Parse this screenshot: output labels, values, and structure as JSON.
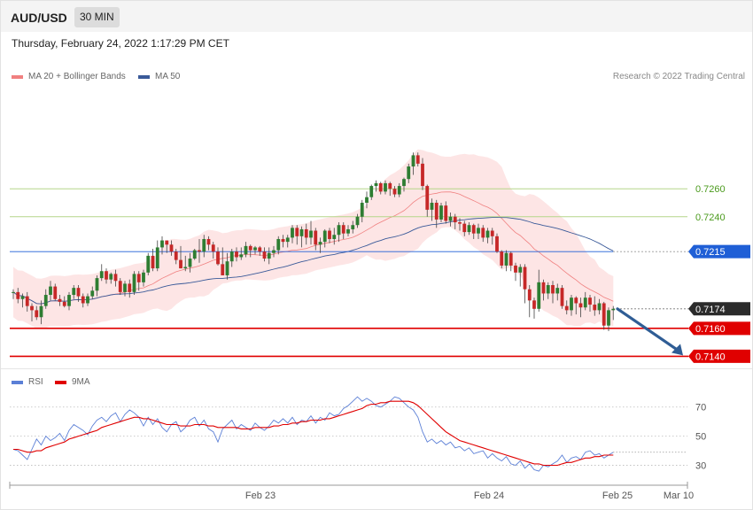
{
  "header": {
    "symbol": "AUD/USD",
    "timeframe": "30 MIN"
  },
  "datetime": "Thursday, February 24, 2022 1:17:29 PM CET",
  "legend": {
    "ma20": {
      "label": "MA 20 + Bollinger Bands",
      "color": "#f08080"
    },
    "ma50": {
      "label": "MA 50",
      "color": "#3a5a99"
    }
  },
  "credit": "Research © 2022 Trading Central",
  "rsi_legend": {
    "rsi": {
      "label": "RSI",
      "color": "#5b7fd6"
    },
    "ma9": {
      "label": "9MA",
      "color": "#e00000"
    }
  },
  "colors": {
    "up": "#2e7d32",
    "down": "#c62828",
    "band": "#fde1e1",
    "ma20": "#f08080",
    "ma50": "#3a5a99",
    "green_level": "#b5d68a",
    "blue_level": "#1f5fd6",
    "red_level": "#e00000",
    "arrow": "#2f5d95"
  },
  "chart_data": [
    {
      "type": "candlestick",
      "title": "AUD/USD",
      "ylim": [
        0.7132,
        0.7335
      ],
      "x_ticks": [
        "Feb 23",
        "Feb 24",
        "Feb 25",
        "Mar 10"
      ],
      "levels": [
        {
          "value": 0.726,
          "label": "0.7260",
          "style": "green"
        },
        {
          "value": 0.724,
          "label": "0.7240",
          "style": "green"
        },
        {
          "value": 0.7215,
          "label": "0.7215",
          "style": "blue"
        },
        {
          "value": 0.7174,
          "label": "0.7174",
          "style": "last"
        },
        {
          "value": 0.716,
          "label": "0.7160",
          "style": "red"
        },
        {
          "value": 0.714,
          "label": "0.7140",
          "style": "red"
        }
      ],
      "forecast_arrow": {
        "from": 0.7174,
        "to": 0.714
      },
      "candles": [
        [
          0.7186,
          0.7186,
          0.7181,
          0.7188
        ],
        [
          0.7186,
          0.7181,
          0.7178,
          0.7189
        ],
        [
          0.7181,
          0.7183,
          0.7175,
          0.7185
        ],
        [
          0.7183,
          0.7176,
          0.7172,
          0.7186
        ],
        [
          0.7176,
          0.7173,
          0.7165,
          0.7178
        ],
        [
          0.7173,
          0.7168,
          0.7166,
          0.7176
        ],
        [
          0.7168,
          0.7176,
          0.7163,
          0.718
        ],
        [
          0.7176,
          0.7184,
          0.7174,
          0.7188
        ],
        [
          0.7184,
          0.719,
          0.718,
          0.7194
        ],
        [
          0.719,
          0.7181,
          0.718,
          0.7192
        ],
        [
          0.7181,
          0.7179,
          0.7176,
          0.7184
        ],
        [
          0.7179,
          0.7176,
          0.7175,
          0.7183
        ],
        [
          0.7176,
          0.7184,
          0.7173,
          0.7186
        ],
        [
          0.7184,
          0.7189,
          0.7181,
          0.7191
        ],
        [
          0.7189,
          0.7183,
          0.7179,
          0.7191
        ],
        [
          0.7183,
          0.7178,
          0.7175,
          0.7185
        ],
        [
          0.7178,
          0.7183,
          0.7176,
          0.7185
        ],
        [
          0.7183,
          0.7187,
          0.7181,
          0.719
        ],
        [
          0.7187,
          0.7196,
          0.7183,
          0.7198
        ],
        [
          0.7196,
          0.7201,
          0.7194,
          0.7206
        ],
        [
          0.7201,
          0.7195,
          0.7192,
          0.7203
        ],
        [
          0.7195,
          0.7199,
          0.7192,
          0.72
        ],
        [
          0.7199,
          0.7194,
          0.719,
          0.7202
        ],
        [
          0.7194,
          0.7186,
          0.7184,
          0.7196
        ],
        [
          0.7186,
          0.7192,
          0.7183,
          0.7194
        ],
        [
          0.7192,
          0.7186,
          0.7182,
          0.7195
        ],
        [
          0.7186,
          0.7199,
          0.7184,
          0.7201
        ],
        [
          0.7199,
          0.7193,
          0.7187,
          0.7201
        ],
        [
          0.7193,
          0.72,
          0.719,
          0.7202
        ],
        [
          0.72,
          0.7212,
          0.7198,
          0.7214
        ],
        [
          0.7212,
          0.7203,
          0.7201,
          0.7217
        ],
        [
          0.7203,
          0.7218,
          0.7201,
          0.7223
        ],
        [
          0.7218,
          0.7223,
          0.7213,
          0.7226
        ],
        [
          0.7223,
          0.722,
          0.7214,
          0.7223
        ],
        [
          0.722,
          0.7215,
          0.7212,
          0.7223
        ],
        [
          0.7215,
          0.7209,
          0.7206,
          0.7217
        ],
        [
          0.7209,
          0.7203,
          0.7203,
          0.7219
        ],
        [
          0.7203,
          0.7204,
          0.7201,
          0.7212
        ],
        [
          0.7204,
          0.721,
          0.72,
          0.7214
        ],
        [
          0.721,
          0.7216,
          0.7209,
          0.7217
        ],
        [
          0.7216,
          0.7215,
          0.7207,
          0.7224
        ],
        [
          0.7215,
          0.7224,
          0.7211,
          0.7227
        ],
        [
          0.7224,
          0.722,
          0.7216,
          0.7226
        ],
        [
          0.722,
          0.7215,
          0.721,
          0.7222
        ],
        [
          0.7215,
          0.7206,
          0.7205,
          0.7218
        ],
        [
          0.7206,
          0.7198,
          0.7198,
          0.7218
        ],
        [
          0.7198,
          0.7208,
          0.7195,
          0.7214
        ],
        [
          0.7208,
          0.7215,
          0.7204,
          0.7217
        ],
        [
          0.7215,
          0.7211,
          0.7208,
          0.7218
        ],
        [
          0.7211,
          0.7213,
          0.7209,
          0.7218
        ],
        [
          0.7213,
          0.7219,
          0.7211,
          0.7222
        ],
        [
          0.7219,
          0.7216,
          0.7211,
          0.722
        ],
        [
          0.7216,
          0.7218,
          0.7213,
          0.7219
        ],
        [
          0.7218,
          0.7215,
          0.7212,
          0.7219
        ],
        [
          0.7215,
          0.721,
          0.7208,
          0.7218
        ],
        [
          0.721,
          0.7214,
          0.7206,
          0.7218
        ],
        [
          0.7214,
          0.7216,
          0.7211,
          0.7219
        ],
        [
          0.7216,
          0.7224,
          0.7213,
          0.7226
        ],
        [
          0.7224,
          0.7222,
          0.7218,
          0.7227
        ],
        [
          0.7222,
          0.7225,
          0.7218,
          0.7227
        ],
        [
          0.7225,
          0.7232,
          0.7221,
          0.7234
        ],
        [
          0.7232,
          0.7226,
          0.722,
          0.7234
        ],
        [
          0.7226,
          0.7231,
          0.7218,
          0.7233
        ],
        [
          0.7231,
          0.7225,
          0.722,
          0.7235
        ],
        [
          0.7225,
          0.723,
          0.722,
          0.7237
        ],
        [
          0.723,
          0.722,
          0.7216,
          0.7232
        ],
        [
          0.722,
          0.7222,
          0.7214,
          0.7225
        ],
        [
          0.7222,
          0.723,
          0.7218,
          0.7231
        ],
        [
          0.723,
          0.7224,
          0.7221,
          0.7232
        ],
        [
          0.7224,
          0.7227,
          0.722,
          0.7232
        ],
        [
          0.7227,
          0.7234,
          0.7222,
          0.7236
        ],
        [
          0.7234,
          0.7228,
          0.7224,
          0.7236
        ],
        [
          0.7228,
          0.7231,
          0.7226,
          0.7234
        ],
        [
          0.7231,
          0.7234,
          0.7228,
          0.7237
        ],
        [
          0.7234,
          0.724,
          0.7232,
          0.7242
        ],
        [
          0.724,
          0.725,
          0.7236,
          0.7252
        ],
        [
          0.725,
          0.7254,
          0.7246,
          0.7258
        ],
        [
          0.7254,
          0.7262,
          0.7252,
          0.7263
        ],
        [
          0.7262,
          0.7264,
          0.7258,
          0.7266
        ],
        [
          0.7264,
          0.7258,
          0.7256,
          0.7265
        ],
        [
          0.7258,
          0.7264,
          0.7256,
          0.7266
        ],
        [
          0.7264,
          0.726,
          0.7255,
          0.7265
        ],
        [
          0.726,
          0.7256,
          0.7254,
          0.7262
        ],
        [
          0.7256,
          0.7262,
          0.7254,
          0.7264
        ],
        [
          0.7262,
          0.7267,
          0.7258,
          0.7268
        ],
        [
          0.7267,
          0.7276,
          0.7264,
          0.7278
        ],
        [
          0.7276,
          0.7284,
          0.727,
          0.7286
        ],
        [
          0.7284,
          0.7278,
          0.7276,
          0.7286
        ],
        [
          0.7278,
          0.7262,
          0.7259,
          0.7282
        ],
        [
          0.7262,
          0.7245,
          0.724,
          0.7263
        ],
        [
          0.7245,
          0.725,
          0.7237,
          0.7253
        ],
        [
          0.725,
          0.7238,
          0.7232,
          0.7252
        ],
        [
          0.7238,
          0.7248,
          0.7236,
          0.725
        ],
        [
          0.7248,
          0.7237,
          0.7235,
          0.7251
        ],
        [
          0.7237,
          0.724,
          0.7233,
          0.7243
        ],
        [
          0.724,
          0.7236,
          0.7231,
          0.7242
        ],
        [
          0.7236,
          0.7235,
          0.723,
          0.7239
        ],
        [
          0.7235,
          0.7229,
          0.7226,
          0.7237
        ],
        [
          0.7229,
          0.7234,
          0.7227,
          0.7236
        ],
        [
          0.7234,
          0.7228,
          0.7224,
          0.7235
        ],
        [
          0.7228,
          0.7232,
          0.7224,
          0.7235
        ],
        [
          0.7232,
          0.7225,
          0.7222,
          0.7234
        ],
        [
          0.7225,
          0.723,
          0.7221,
          0.7232
        ],
        [
          0.723,
          0.7226,
          0.722,
          0.7232
        ],
        [
          0.7226,
          0.7215,
          0.7214,
          0.7228
        ],
        [
          0.7215,
          0.7205,
          0.7203,
          0.7216
        ],
        [
          0.7205,
          0.7214,
          0.7201,
          0.7216
        ],
        [
          0.7214,
          0.7205,
          0.7201,
          0.7215
        ],
        [
          0.7205,
          0.72,
          0.7194,
          0.7207
        ],
        [
          0.72,
          0.7204,
          0.719,
          0.7206
        ],
        [
          0.7204,
          0.7188,
          0.7178,
          0.7206
        ],
        [
          0.7188,
          0.718,
          0.7168,
          0.7191
        ],
        [
          0.718,
          0.7174,
          0.7167,
          0.7182
        ],
        [
          0.7174,
          0.7193,
          0.7172,
          0.7202
        ],
        [
          0.7193,
          0.7185,
          0.718,
          0.7195
        ],
        [
          0.7185,
          0.7191,
          0.7181,
          0.7193
        ],
        [
          0.7191,
          0.7185,
          0.7178,
          0.7194
        ],
        [
          0.7185,
          0.7189,
          0.718,
          0.7192
        ],
        [
          0.7189,
          0.7176,
          0.7174,
          0.7191
        ],
        [
          0.7176,
          0.7173,
          0.717,
          0.718
        ],
        [
          0.7173,
          0.7182,
          0.7169,
          0.7184
        ],
        [
          0.7182,
          0.7178,
          0.717,
          0.7183
        ],
        [
          0.7178,
          0.7175,
          0.7168,
          0.7182
        ],
        [
          0.7175,
          0.7182,
          0.7173,
          0.7186
        ],
        [
          0.7182,
          0.7177,
          0.7172,
          0.7184
        ],
        [
          0.7177,
          0.7173,
          0.7169,
          0.7183
        ],
        [
          0.7173,
          0.7178,
          0.717,
          0.7181
        ],
        [
          0.7178,
          0.7162,
          0.7159,
          0.7179
        ],
        [
          0.7162,
          0.7173,
          0.7158,
          0.7175
        ],
        [
          0.7173,
          0.7174,
          0.7166,
          0.7176
        ]
      ]
    },
    {
      "type": "line",
      "title": "RSI",
      "ylim": [
        20,
        82
      ],
      "y_ticks": [
        70,
        50,
        30
      ],
      "x_ticks": [
        "Feb 23",
        "Feb 24",
        "Feb 25",
        "Mar 10"
      ],
      "series": [
        {
          "name": "RSI",
          "values": [
            41,
            40,
            37,
            34,
            41,
            48,
            44,
            50,
            47,
            49,
            52,
            47,
            54,
            58,
            56,
            54,
            51,
            57,
            61,
            63,
            60,
            64,
            66,
            60,
            65,
            68,
            66,
            63,
            57,
            63,
            58,
            62,
            56,
            53,
            58,
            60,
            53,
            56,
            61,
            63,
            57,
            61,
            55,
            53,
            46,
            55,
            58,
            61,
            55,
            58,
            56,
            54,
            59,
            56,
            54,
            57,
            61,
            59,
            62,
            59,
            63,
            58,
            61,
            60,
            64,
            59,
            63,
            61,
            66,
            64,
            65,
            69,
            71,
            74,
            77,
            74,
            76,
            74,
            71,
            70,
            72,
            74,
            77,
            76,
            73,
            70,
            68,
            63,
            53,
            46,
            48,
            45,
            47,
            44,
            46,
            42,
            43,
            40,
            42,
            38,
            39,
            40,
            35,
            38,
            35,
            33,
            36,
            31,
            30,
            33,
            28,
            31,
            27,
            26,
            30,
            29,
            31,
            33,
            37,
            32,
            35,
            36,
            34,
            39,
            40,
            37,
            38,
            35,
            37,
            39
          ]
        },
        {
          "name": "9MA",
          "values": [
            41,
            41,
            40,
            39,
            39,
            40,
            40,
            42,
            43,
            44,
            45,
            46,
            48,
            49,
            50,
            51,
            52,
            53,
            54,
            56,
            57,
            58,
            59,
            60,
            61,
            62,
            63,
            63,
            62,
            62,
            61,
            60,
            59,
            58,
            58,
            58,
            57,
            57,
            57,
            58,
            58,
            58,
            57,
            57,
            56,
            56,
            56,
            56,
            56,
            55,
            55,
            55,
            56,
            56,
            56,
            56,
            57,
            57,
            58,
            58,
            59,
            59,
            60,
            60,
            61,
            61,
            61,
            62,
            62,
            63,
            64,
            65,
            66,
            67,
            68,
            69,
            71,
            72,
            72,
            73,
            73,
            74,
            74,
            74,
            74,
            74,
            73,
            71,
            68,
            65,
            62,
            59,
            56,
            53,
            51,
            49,
            47,
            46,
            45,
            44,
            43,
            42,
            41,
            40,
            39,
            38,
            37,
            36,
            35,
            34,
            33,
            32,
            31,
            31,
            30,
            30,
            30,
            30,
            31,
            32,
            32,
            33,
            34,
            35,
            35,
            36,
            36,
            37,
            37,
            37
          ]
        }
      ]
    }
  ]
}
